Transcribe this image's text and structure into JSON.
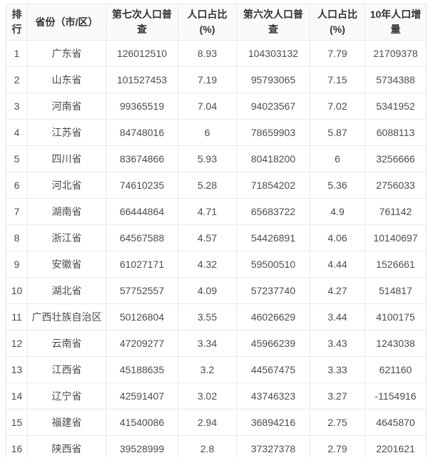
{
  "chart_data": {
    "type": "table",
    "columns": [
      {
        "key": "rank",
        "label": "排行"
      },
      {
        "key": "province",
        "label": "省份（市/区）"
      },
      {
        "key": "census7",
        "label": "第七次人口普查"
      },
      {
        "key": "pct7",
        "label": "人口占比(%)"
      },
      {
        "key": "census6",
        "label": "第六次人口普查"
      },
      {
        "key": "pct6",
        "label": "人口占比(%)"
      },
      {
        "key": "growth",
        "label": "10年人口增量"
      }
    ],
    "rows": [
      {
        "rank": "1",
        "province": "广东省",
        "census7": "126012510",
        "pct7": "8.93",
        "census6": "104303132",
        "pct6": "7.79",
        "growth": "21709378"
      },
      {
        "rank": "2",
        "province": "山东省",
        "census7": "101527453",
        "pct7": "7.19",
        "census6": "95793065",
        "pct6": "7.15",
        "growth": "5734388"
      },
      {
        "rank": "3",
        "province": "河南省",
        "census7": "99365519",
        "pct7": "7.04",
        "census6": "94023567",
        "pct6": "7.02",
        "growth": "5341952"
      },
      {
        "rank": "4",
        "province": "江苏省",
        "census7": "84748016",
        "pct7": "6",
        "census6": "78659903",
        "pct6": "5.87",
        "growth": "6088113"
      },
      {
        "rank": "5",
        "province": "四川省",
        "census7": "83674866",
        "pct7": "5.93",
        "census6": "80418200",
        "pct6": "6",
        "growth": "3256666"
      },
      {
        "rank": "6",
        "province": "河北省",
        "census7": "74610235",
        "pct7": "5.28",
        "census6": "71854202",
        "pct6": "5.36",
        "growth": "2756033"
      },
      {
        "rank": "7",
        "province": "湖南省",
        "census7": "66444864",
        "pct7": "4.71",
        "census6": "65683722",
        "pct6": "4.9",
        "growth": "761142"
      },
      {
        "rank": "8",
        "province": "浙江省",
        "census7": "64567588",
        "pct7": "4.57",
        "census6": "54426891",
        "pct6": "4.06",
        "growth": "10140697"
      },
      {
        "rank": "9",
        "province": "安徽省",
        "census7": "61027171",
        "pct7": "4.32",
        "census6": "59500510",
        "pct6": "4.44",
        "growth": "1526661"
      },
      {
        "rank": "10",
        "province": "湖北省",
        "census7": "57752557",
        "pct7": "4.09",
        "census6": "57237740",
        "pct6": "4.27",
        "growth": "514817"
      },
      {
        "rank": "11",
        "province": "广西壮族自治区",
        "census7": "50126804",
        "pct7": "3.55",
        "census6": "46026629",
        "pct6": "3.44",
        "growth": "4100175"
      },
      {
        "rank": "12",
        "province": "云南省",
        "census7": "47209277",
        "pct7": "3.34",
        "census6": "45966239",
        "pct6": "3.43",
        "growth": "1243038"
      },
      {
        "rank": "13",
        "province": "江西省",
        "census7": "45188635",
        "pct7": "3.2",
        "census6": "44567475",
        "pct6": "3.33",
        "growth": "621160"
      },
      {
        "rank": "14",
        "province": "辽宁省",
        "census7": "42591407",
        "pct7": "3.02",
        "census6": "43746323",
        "pct6": "3.27",
        "growth": "-1154916"
      },
      {
        "rank": "15",
        "province": "福建省",
        "census7": "41540086",
        "pct7": "2.94",
        "census6": "36894216",
        "pct6": "2.75",
        "growth": "4645870"
      },
      {
        "rank": "16",
        "province": "陕西省",
        "census7": "39528999",
        "pct7": "2.8",
        "census6": "37327378",
        "pct6": "2.79",
        "growth": "2201621"
      }
    ]
  }
}
